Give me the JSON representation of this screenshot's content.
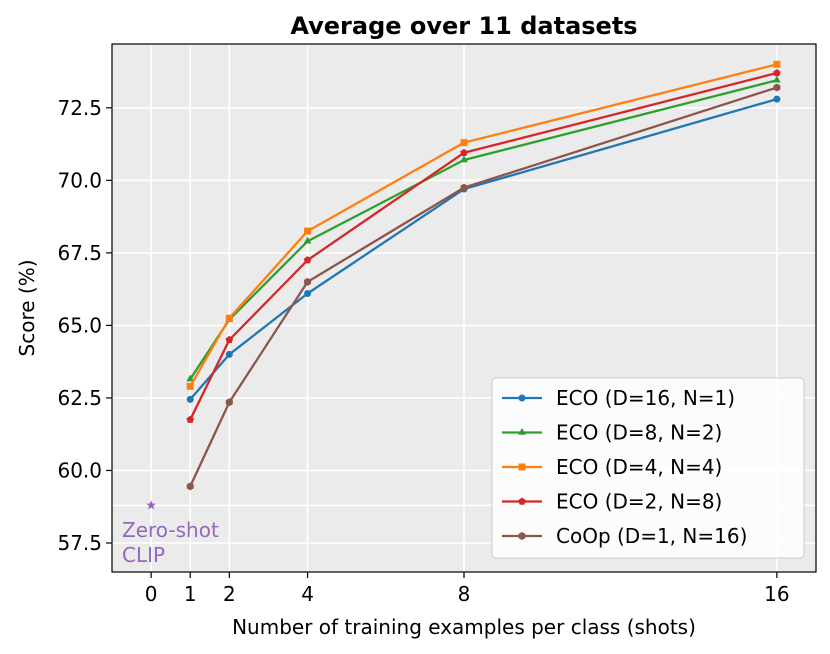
{
  "chart_data": {
    "type": "line",
    "title": "Average over 11 datasets",
    "xlabel": "Number of training examples per class (shots)",
    "ylabel": "Score (%)",
    "xlim": [
      -1,
      17
    ],
    "ylim": [
      56.5,
      74.7
    ],
    "xticks": [
      0,
      1,
      2,
      4,
      8,
      16
    ],
    "yticks": [
      57.5,
      60.0,
      62.5,
      65.0,
      67.5,
      70.0,
      72.5
    ],
    "ytick_labels": [
      "57.5",
      "60.0",
      "62.5",
      "65.0",
      "67.5",
      "70.0",
      "72.5"
    ],
    "grid": true,
    "legend_position": "lower-right",
    "x": [
      1,
      2,
      4,
      8,
      16
    ],
    "series": [
      {
        "name": "ECO (D=16, N=1)",
        "color": "#1f77b4",
        "marker": "circle",
        "values": [
          62.45,
          64.0,
          66.1,
          69.7,
          72.8
        ]
      },
      {
        "name": "ECO (D=8, N=2)",
        "color": "#2ca02c",
        "marker": "triangle",
        "values": [
          63.15,
          65.2,
          67.9,
          70.7,
          73.45
        ]
      },
      {
        "name": "ECO (D=4, N=4)",
        "color": "#ff7f0e",
        "marker": "square",
        "values": [
          62.9,
          65.25,
          68.25,
          71.3,
          74.0
        ]
      },
      {
        "name": "ECO (D=2, N=8)",
        "color": "#d62728",
        "marker": "pentagon",
        "values": [
          61.75,
          64.5,
          67.25,
          70.95,
          73.7
        ]
      },
      {
        "name": "CoOp (D=1, N=16)",
        "color": "#8c564b",
        "marker": "hexagon",
        "values": [
          59.45,
          62.35,
          66.5,
          69.75,
          73.2
        ]
      }
    ],
    "zero_shot": {
      "x": 0,
      "value": 58.8,
      "label_line1": "Zero-shot",
      "label_line2": "CLIP",
      "color": "#9467bd"
    }
  }
}
